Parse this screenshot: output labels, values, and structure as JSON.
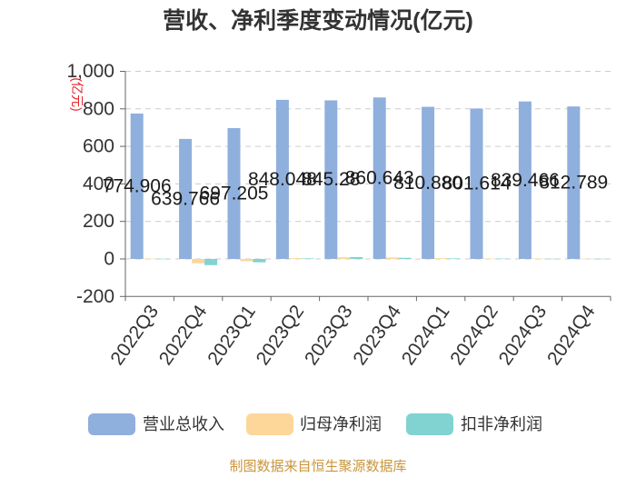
{
  "source": "制图数据来自恒生聚源数据库",
  "colors": {
    "unit_label": "#e8222a",
    "source": "#c9953a"
  },
  "chart_data": {
    "type": "bar",
    "title": "营收、净利季度变动情况(亿元)",
    "ylabel": "(亿元)",
    "ylim": [
      -200,
      1000
    ],
    "yticks": [
      -200,
      0,
      200,
      400,
      600,
      800,
      1000
    ],
    "ytick_labels": [
      "-200",
      "0",
      "200",
      "400",
      "600",
      "800",
      "1,000"
    ],
    "categories": [
      "2022Q3",
      "2022Q4",
      "2023Q1",
      "2023Q2",
      "2023Q3",
      "2023Q4",
      "2024Q1",
      "2024Q2",
      "2024Q3",
      "2024Q4"
    ],
    "series": [
      {
        "name": "营业总收入",
        "color": "#8fafdd",
        "values": [
          774.906,
          639.766,
          697.205,
          848.048,
          845.28,
          860.643,
          810.88,
          801.614,
          839.466,
          812.789
        ],
        "labels": [
          "774.906",
          "639.766",
          "697.205",
          "848.048",
          "845.28",
          "860.643",
          "810.880",
          "801.614",
          "839.466",
          "812.789"
        ]
      },
      {
        "name": "归母净利润",
        "color": "#fdd69a",
        "values": [
          2,
          -23,
          -12,
          4,
          9,
          8,
          4,
          2,
          2,
          1
        ]
      },
      {
        "name": "扣非净利润",
        "color": "#80d3d1",
        "values": [
          1,
          -33,
          -18,
          3,
          10,
          6,
          3,
          2,
          1,
          1
        ]
      }
    ],
    "grid": true,
    "legend": "bottom"
  }
}
